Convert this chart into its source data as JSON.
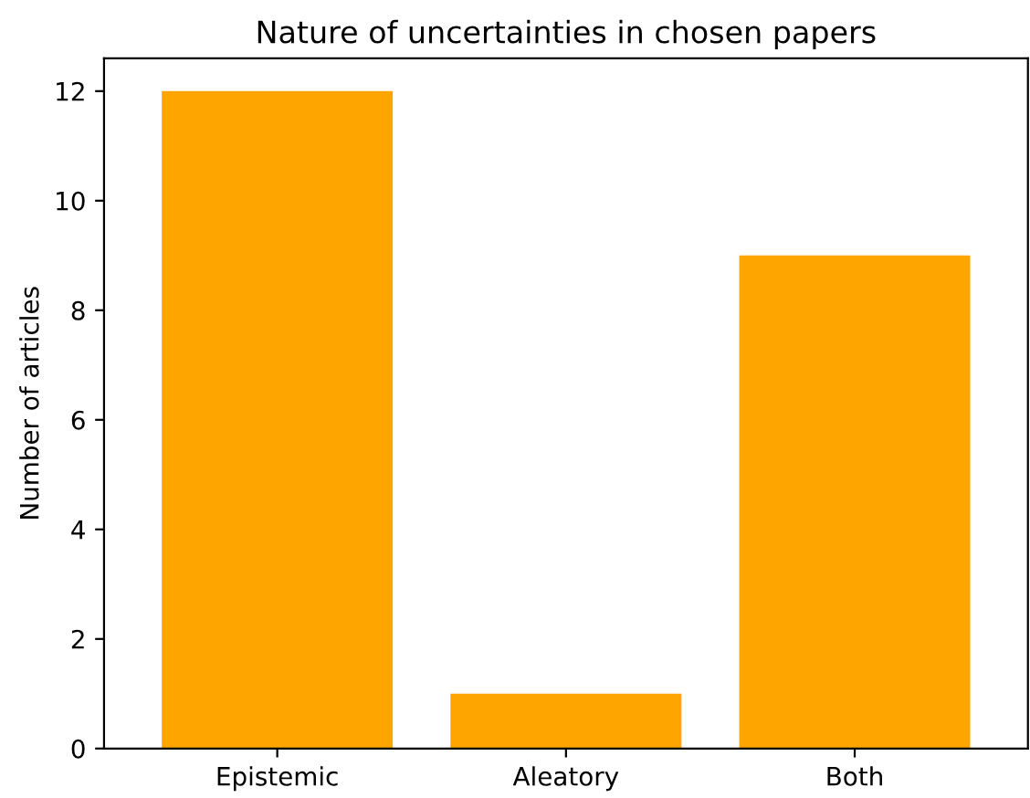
{
  "chart_data": {
    "type": "bar",
    "title": "Nature of uncertainties in chosen papers",
    "ylabel": "Number of articles",
    "categories": [
      "Epistemic",
      "Aleatory",
      "Both"
    ],
    "values": [
      12,
      1,
      9
    ],
    "color": "#ffa500",
    "ylim": [
      0,
      12.6
    ],
    "yticks": [
      0,
      2,
      4,
      6,
      8,
      10,
      12
    ],
    "grid": false
  }
}
